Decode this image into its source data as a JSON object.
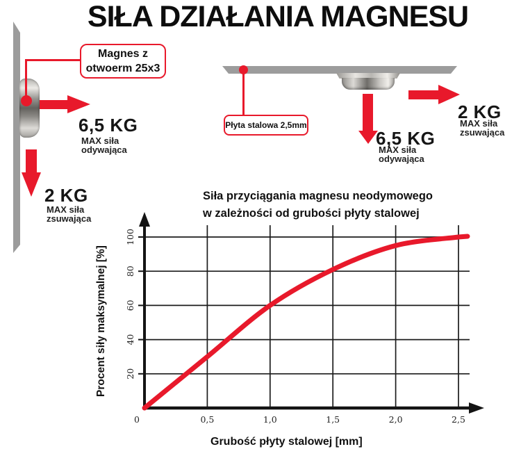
{
  "title": "SIŁA DZIAŁANIA MAGNESU",
  "left_diagram": {
    "callout": {
      "line1": "Magnes z",
      "line2": "otwoerm 25x3"
    },
    "pull_force": {
      "value": "6,5 KG",
      "desc_line1": "MAX siła",
      "desc_line2": "odywająca"
    },
    "slide_force": {
      "value": "2 KG",
      "desc_line1": "MAX siła",
      "desc_line2": "zsuwająca"
    }
  },
  "right_diagram": {
    "callout": "Płyta stalowa 2,5mm",
    "pull_force": {
      "value": "6,5 KG",
      "desc_line1": "MAX siła",
      "desc_line2": "odywająca"
    },
    "slide_force": {
      "value": "2 KG",
      "desc_line1": "MAX siła",
      "desc_line2": "zsuwająca"
    }
  },
  "chart_data": {
    "type": "line",
    "title_line1": "Siła przyciągania magnesu neodymowego",
    "title_line2": "w zależności od grubości płyty stalowej",
    "xlabel": "Grubość płyty stalowej [mm]",
    "ylabel": "Procent siły maksymalnej [%]",
    "x": [
      0,
      0.5,
      1.0,
      1.5,
      2.0,
      2.5
    ],
    "values": [
      0,
      30,
      60,
      81,
      95,
      100
    ],
    "x_ticks": [
      0,
      0.5,
      1.0,
      1.5,
      2.0,
      2.5
    ],
    "x_tick_labels": [
      "0",
      "0,5",
      "1,0",
      "1,5",
      "2,0",
      "2,5"
    ],
    "y_ticks": [
      20,
      40,
      60,
      80,
      100
    ],
    "y_tick_labels": [
      "20",
      "40",
      "60",
      "80",
      "100"
    ],
    "xlim": [
      0,
      2.7
    ],
    "ylim": [
      0,
      107
    ],
    "grid": true,
    "line_color": "#e8192b"
  },
  "colors": {
    "accent_red": "#e8192b",
    "plate_gray": "#9c9c9c",
    "axis_black": "#141414",
    "text_black": "#111111"
  }
}
